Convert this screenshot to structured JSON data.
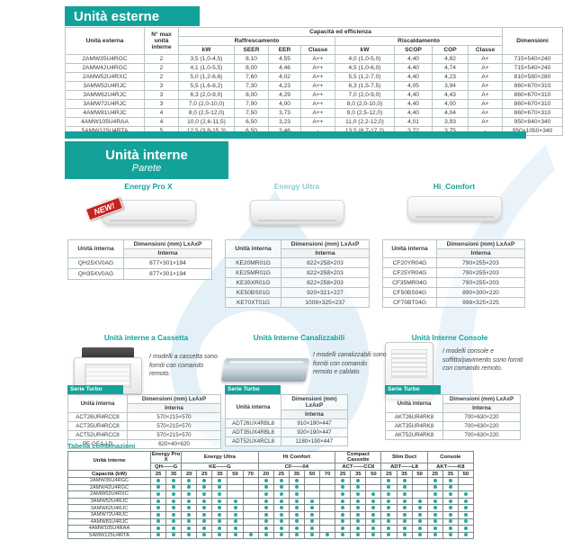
{
  "colors": {
    "teal": "#13a29a",
    "teal_dark": "#0d8d86",
    "border": "#b9c6c5",
    "border_dark": "#8a9a99",
    "dot": "#2aa9a1",
    "text": "#3a3a3a",
    "red": "#c4231f",
    "watermark": "#cfe4f4"
  },
  "watermark": {
    "symbol": "®"
  },
  "external": {
    "title": "Unità esterne",
    "table": {
      "col_unit": "Unità esterna",
      "col_nmax": "N° max unità interne",
      "col_capacity": "Capacità ed efficienza",
      "col_cooling": "Raffrescamento",
      "col_heating": "Riscaldamento",
      "col_dimensions": "Dimensioni",
      "cooling_cols": [
        "kW",
        "SEER",
        "EER",
        "Classe"
      ],
      "heating_cols": [
        "kW",
        "SCOP",
        "COP",
        "Classe"
      ],
      "rows": [
        [
          "2AMW35U4RGC",
          "2",
          "3,5 (1,0-4,5)",
          "8,10",
          "4,55",
          "A++",
          "4,0 (1,0-5,0)",
          "4,40",
          "4,82",
          "A+",
          "715×540×240"
        ],
        [
          "2AMW42U4RGC",
          "2",
          "4,1 (1,0-5,5)",
          "8,00",
          "4,46",
          "A++",
          "4,5 (1,0-6,0)",
          "4,40",
          "4,74",
          "A+",
          "715×540×240"
        ],
        [
          "2AMW52U4RXC",
          "2",
          "5,0 (1,2-6,6)",
          "7,60",
          "4,02",
          "A++",
          "5,5 (1,2-7,0)",
          "4,40",
          "4,23",
          "A+",
          "810×580×280"
        ],
        [
          "3AMW52U4RJC",
          "3",
          "5,5 (1,6-8,2)",
          "7,30",
          "4,23",
          "A++",
          "6,3 (1,5-7,5)",
          "4,05",
          "3,94",
          "A+",
          "860×670×310"
        ],
        [
          "3AMW62U4RJC",
          "3",
          "6,3 (2,0-9,0)",
          "8,00",
          "4,29",
          "A++",
          "7,0 (2,0-9,0)",
          "4,40",
          "4,43",
          "A+",
          "860×670×310"
        ],
        [
          "3AMW72U4RJC",
          "3",
          "7,0 (2,0-10,0)",
          "7,90",
          "4,00",
          "A++",
          "8,0 (2,0-10,0)",
          "4,40",
          "4,00",
          "A+",
          "860×670×310"
        ],
        [
          "4AMW81U4RJC",
          "4",
          "8,0 (2,5-12,0)",
          "7,50",
          "3,73",
          "A++",
          "9,0 (2,5-12,0)",
          "4,40",
          "4,04",
          "A+",
          "860×670×310"
        ],
        [
          "4AMW105U4RAA",
          "4",
          "10,0 (2,6-11,5)",
          "6,50",
          "3,23",
          "A++",
          "11,0 (2,2-12,0)",
          "4,01",
          "3,93",
          "A+",
          "950×840×340"
        ],
        [
          "5AMW125U4RTA",
          "5",
          "12,5 (3,8-15,3)",
          "6,50",
          "3,46",
          "-",
          "13,5 (6,7-17,2)",
          "3,72",
          "3,75",
          "-",
          "950×1050×340"
        ]
      ]
    }
  },
  "wall": {
    "title": "Unità interne",
    "subtitle": "Parete",
    "th": {
      "unit": "Unità interna",
      "dims": "Dimensioni (mm) LxAxP",
      "sub": "Interna"
    },
    "products": [
      {
        "name": "Energy Pro X",
        "badge": "NEW!",
        "rows": [
          [
            "QH25XV0AG",
            "877×301×194"
          ],
          [
            "QH35XV0AG",
            "877×301×194"
          ]
        ]
      },
      {
        "name": "Energy Ultra",
        "rows": [
          [
            "KE20MR01G",
            "822×258×203"
          ],
          [
            "KE25MR01G",
            "822×258×203"
          ],
          [
            "KE35XR01G",
            "822×258×203"
          ],
          [
            "KE50BS01G",
            "920×321×227"
          ],
          [
            "KE70XT01G",
            "1008×325×237"
          ]
        ]
      },
      {
        "name": "Hi_Comfort",
        "rows": [
          [
            "CF20YR04G",
            "790×255×203"
          ],
          [
            "CF25YR04G",
            "790×255×203"
          ],
          [
            "CF35MR04G",
            "790×255×203"
          ],
          [
            "CF50BS04G",
            "890×300×220"
          ],
          [
            "CF70BT04G",
            "998×325×225"
          ]
        ]
      }
    ]
  },
  "sections": [
    {
      "title": "Unità interne a Cassetta",
      "desc": "I modelli a cassetta sono forniti con comando remoto.",
      "serie": "Serie Turbo",
      "rows": [
        [
          "ACT26UR4RCC8",
          "570×215×570"
        ],
        [
          "ACT35UR4RCC8",
          "570×215×570"
        ],
        [
          "ACT52UR4RCC8",
          "570×215×570"
        ],
        [
          "PE-GEA-LD",
          "620×40×620"
        ]
      ]
    },
    {
      "title": "Unità Interne Canalizzabili",
      "desc": "I modelli canalizzabili sono forniti con comando remoto e cablato.",
      "serie": "Serie Turbo",
      "rows": [
        [
          "ADT26UX4RBL8",
          "910×190×447"
        ],
        [
          "ADT35UX4RBL8",
          "920×190×447"
        ],
        [
          "ADT52UX4RCL8",
          "1180×190×447"
        ]
      ]
    },
    {
      "title": "Unità Interne Console",
      "desc": "I modelli console e soffitto/pavimento sono forniti con comando remoto.",
      "serie": "Serie Turbo",
      "rows": [
        [
          "AKT26UR4RK8",
          "700×630×220"
        ],
        [
          "AKT35UR4RK8",
          "700×630×220"
        ],
        [
          "AKT52UR4RK8",
          "700×630×220"
        ]
      ]
    }
  ],
  "combos": {
    "title": "Tabella combinazioni",
    "col_unit": "Unità interne",
    "col_capacity": "Capacità (kW)",
    "groups": [
      {
        "name": "Energy Pro X",
        "code": "QH——G",
        "sizes": [
          "25",
          "35"
        ]
      },
      {
        "name": "Energy Ultra",
        "code": "KE——G",
        "sizes": [
          "20",
          "25",
          "35",
          "50",
          "70"
        ]
      },
      {
        "name": "Hi Comfort",
        "code": "CF——04",
        "sizes": [
          "20",
          "25",
          "35",
          "50",
          "70"
        ]
      },
      {
        "name": "Compact Cassette",
        "code": "ACT——CC8",
        "sizes": [
          "25",
          "35",
          "50"
        ]
      },
      {
        "name": "Slim Duct",
        "code": "ADT——L8",
        "sizes": [
          "25",
          "35",
          "50"
        ]
      },
      {
        "name": "Console",
        "code": "AKT——K8",
        "sizes": [
          "25",
          "35",
          "50"
        ]
      }
    ],
    "rows": [
      {
        "unit": "2AMW35U4RGC",
        "dots": [
          1,
          1,
          1,
          1,
          1,
          0,
          0,
          1,
          1,
          1,
          0,
          0,
          1,
          1,
          0,
          1,
          1,
          0,
          1,
          1,
          0
        ]
      },
      {
        "unit": "2AMW42U4RGC",
        "dots": [
          1,
          1,
          1,
          1,
          1,
          0,
          0,
          1,
          1,
          1,
          0,
          0,
          1,
          1,
          0,
          1,
          1,
          0,
          1,
          1,
          0
        ]
      },
      {
        "unit": "2AMW52U4RXC",
        "dots": [
          1,
          1,
          1,
          1,
          1,
          0,
          0,
          1,
          1,
          1,
          0,
          0,
          1,
          1,
          1,
          1,
          1,
          0,
          1,
          1,
          1
        ]
      },
      {
        "unit": "3AMW52U4RJC",
        "dots": [
          1,
          1,
          1,
          1,
          1,
          1,
          0,
          1,
          1,
          1,
          1,
          0,
          1,
          1,
          1,
          1,
          1,
          1,
          1,
          1,
          1
        ]
      },
      {
        "unit": "3AMW62U4RJC",
        "dots": [
          1,
          1,
          1,
          1,
          1,
          1,
          0,
          1,
          1,
          1,
          1,
          0,
          1,
          1,
          1,
          1,
          1,
          1,
          1,
          1,
          1
        ]
      },
      {
        "unit": "3AMW72U4RJC",
        "dots": [
          1,
          1,
          1,
          1,
          1,
          1,
          0,
          1,
          1,
          1,
          1,
          0,
          1,
          1,
          1,
          1,
          1,
          1,
          1,
          1,
          1
        ]
      },
      {
        "unit": "4AMW81U4RJC",
        "dots": [
          1,
          1,
          1,
          1,
          1,
          1,
          0,
          1,
          1,
          1,
          1,
          0,
          1,
          1,
          1,
          1,
          1,
          1,
          1,
          1,
          1
        ]
      },
      {
        "unit": "4AMW105U4RAA",
        "dots": [
          1,
          1,
          1,
          1,
          1,
          1,
          0,
          1,
          1,
          1,
          1,
          0,
          1,
          1,
          1,
          1,
          1,
          1,
          1,
          1,
          1
        ]
      },
      {
        "unit": "5AMW125U4RTA",
        "dots": [
          1,
          1,
          1,
          1,
          1,
          1,
          1,
          1,
          1,
          1,
          1,
          1,
          1,
          1,
          1,
          1,
          1,
          1,
          1,
          1,
          1
        ]
      }
    ]
  }
}
